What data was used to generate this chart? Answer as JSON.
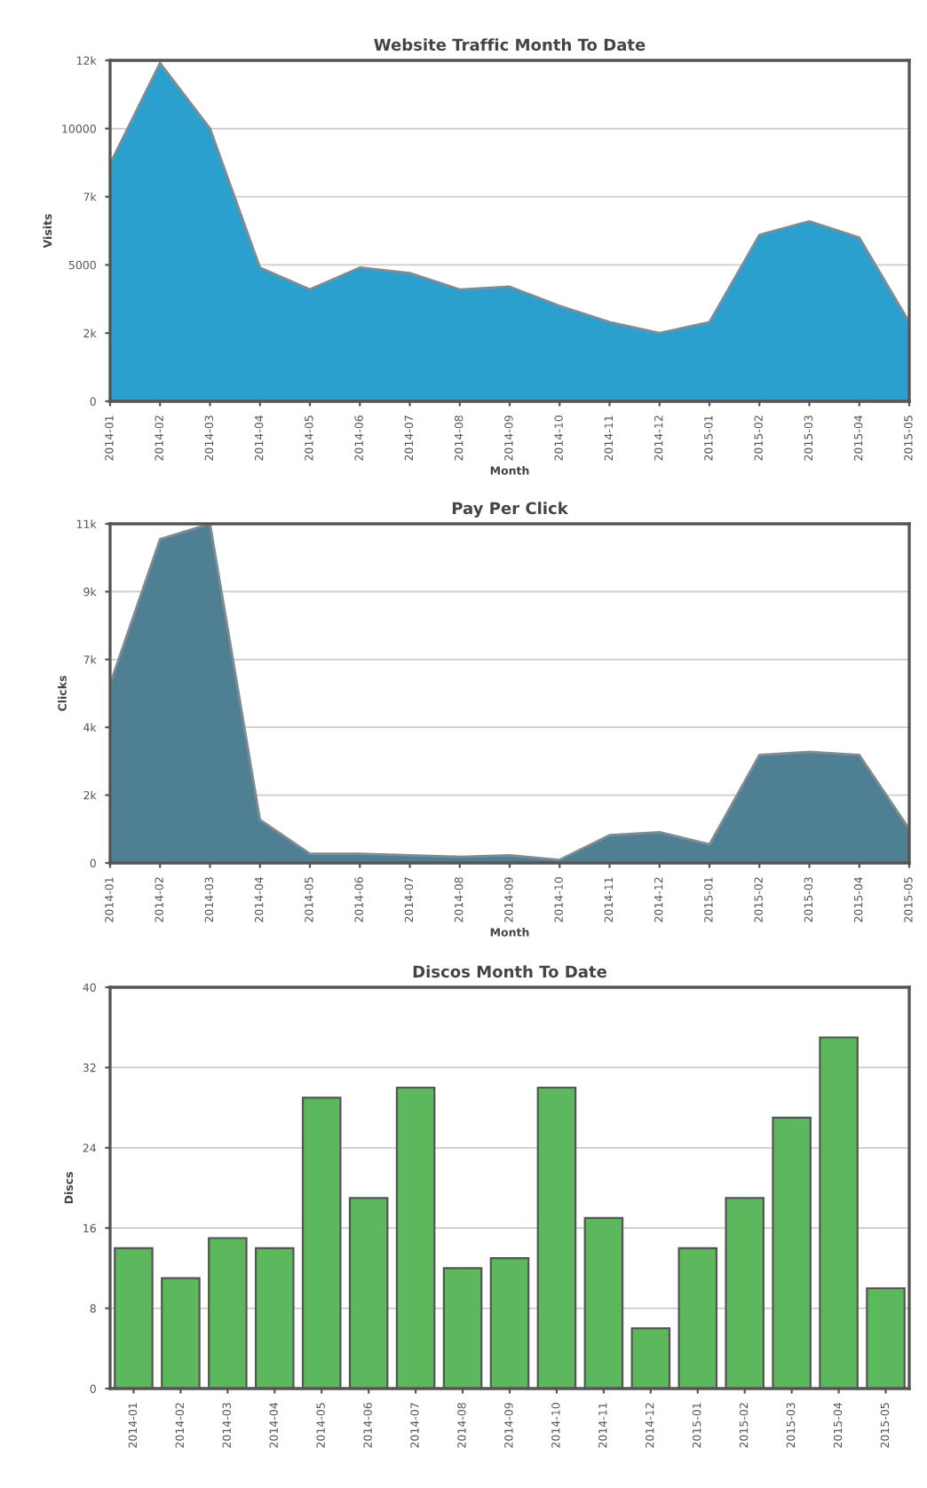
{
  "chart_data": [
    {
      "type": "area",
      "title": "Website Traffic Month To Date",
      "xlabel": "Month",
      "ylabel": "Visits",
      "categories": [
        "2014-01",
        "2014-02",
        "2014-03",
        "2014-04",
        "2014-05",
        "2014-06",
        "2014-07",
        "2014-08",
        "2014-09",
        "2014-10",
        "2014-11",
        "2014-12",
        "2015-01",
        "2015-02",
        "2015-03",
        "2015-04",
        "2015-05"
      ],
      "series": [
        {
          "color": "#2b9fce",
          "values": [
            8700,
            12400,
            10000,
            4900,
            4100,
            4900,
            4700,
            4100,
            4200,
            3500,
            2900,
            2500,
            2900,
            6100,
            6600,
            6000,
            2900
          ]
        }
      ],
      "ylim": [
        0,
        12500
      ],
      "yticks": [
        0,
        {
          "value": 2500,
          "label": "2k"
        },
        5000,
        {
          "value": 7500,
          "label": "7k"
        },
        10000,
        {
          "value": 12500,
          "label": "12k"
        }
      ],
      "grid": "y"
    },
    {
      "type": "area",
      "title": "Pay Per Click",
      "xlabel": "Month",
      "ylabel": "Clicks",
      "categories": [
        "2014-01",
        "2014-02",
        "2014-03",
        "2014-04",
        "2014-05",
        "2014-06",
        "2014-07",
        "2014-08",
        "2014-09",
        "2014-10",
        "2014-11",
        "2014-12",
        "2015-01",
        "2015-02",
        "2015-03",
        "2015-04",
        "2015-05"
      ],
      "series": [
        {
          "color": "#4f7f93",
          "values": [
            5800,
            10500,
            11000,
            1400,
            300,
            300,
            250,
            200,
            250,
            100,
            900,
            1000,
            600,
            3500,
            3600,
            3500,
            1100
          ]
        }
      ],
      "ylim": [
        0,
        11000
      ],
      "yticks": [
        0,
        {
          "value": 2200,
          "label": "2k"
        },
        {
          "value": 4400,
          "label": "4k"
        },
        {
          "value": 6600,
          "label": "7k"
        },
        {
          "value": 8800,
          "label": "9k"
        },
        {
          "value": 11000,
          "label": "11k"
        }
      ],
      "grid": "y"
    },
    {
      "type": "bar",
      "title": "Discos Month To Date",
      "ylabel": "Discs",
      "categories": [
        "2014-01",
        "2014-02",
        "2014-03",
        "2014-04",
        "2014-05",
        "2014-06",
        "2014-07",
        "2014-08",
        "2014-09",
        "2014-10",
        "2014-11",
        "2014-12",
        "2015-01",
        "2015-02",
        "2015-03",
        "2015-04",
        "2015-05"
      ],
      "series": [
        {
          "color": "#5cb85c",
          "values": [
            14,
            11,
            15,
            14,
            29,
            19,
            30,
            12,
            13,
            30,
            17,
            6,
            14,
            19,
            27,
            35,
            10
          ]
        }
      ],
      "ylim": [
        0,
        40
      ],
      "yticks": [
        0,
        8,
        16,
        24,
        32,
        40
      ],
      "grid": "y"
    }
  ]
}
